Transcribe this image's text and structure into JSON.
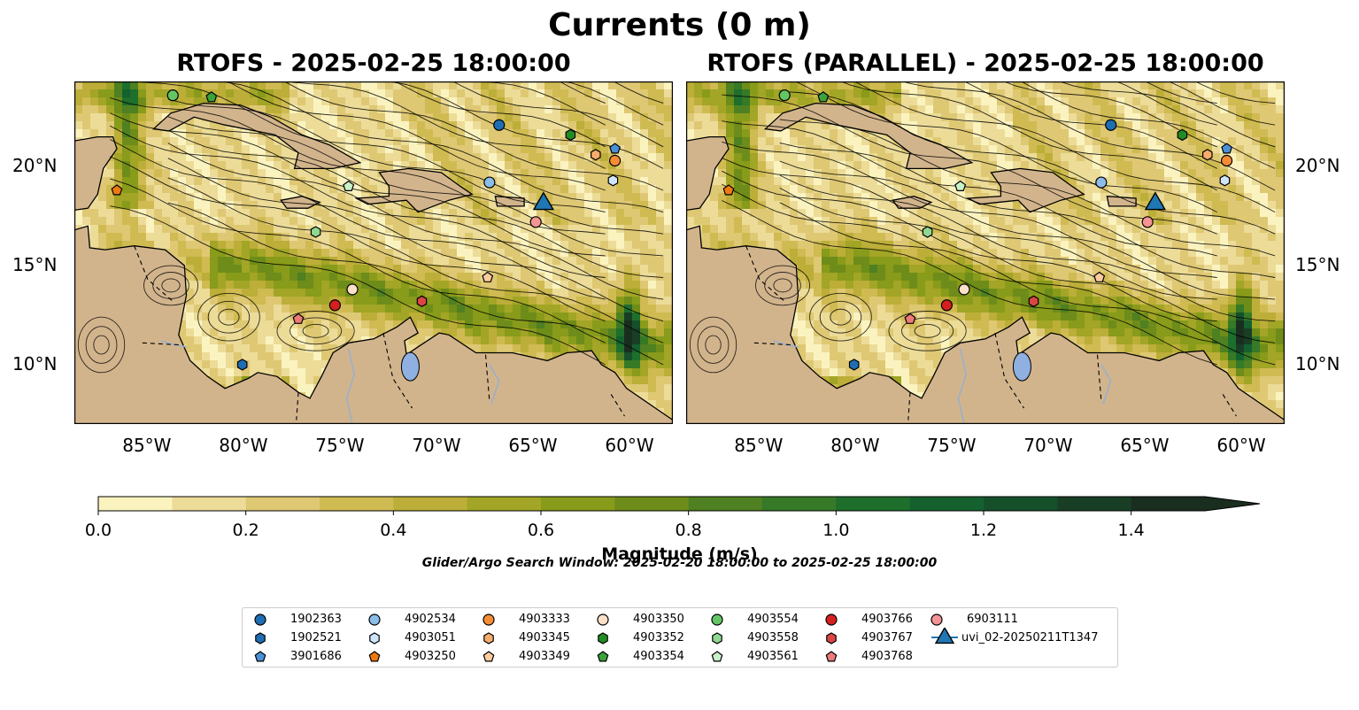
{
  "figure": {
    "title": "Currents (0 m)",
    "left_panel_title": "RTOFS - 2025-02-25 18:00:00",
    "right_panel_title": "RTOFS (PARALLEL) - 2025-02-25 18:00:00"
  },
  "map": {
    "lon_range": [
      -89,
      -58
    ],
    "lat_range": [
      7,
      24.3
    ],
    "x_ticks": [
      "85°W",
      "80°W",
      "75°W",
      "70°W",
      "65°W",
      "60°W"
    ],
    "y_ticks": [
      "20°N",
      "15°N",
      "10°N"
    ],
    "land_color": "#d2b48c",
    "water_feature_color": "#8fb0e0"
  },
  "colorbar": {
    "label": "Magnitude (m/s)",
    "ticks": [
      "0.0",
      "0.2",
      "0.4",
      "0.6",
      "0.8",
      "1.0",
      "1.2",
      "1.4"
    ],
    "min": 0.0,
    "max": 1.5,
    "extend": "max",
    "colors": [
      "#fbf3bf",
      "#ecdc98",
      "#dfc873",
      "#cfbb52",
      "#bcae38",
      "#a2a526",
      "#889b1a",
      "#6e8c19",
      "#4f8021",
      "#367926",
      "#1e6e2c",
      "#14612f",
      "#15502b",
      "#183e25",
      "#1a2e1f"
    ]
  },
  "search_window": "Glider/Argo Search Window: 2025-02-20 18:00:00 to 2025-02-25 18:00:00",
  "legend": {
    "items": [
      {
        "label": "1902363",
        "marker": "circle",
        "color": "#1f6db3"
      },
      {
        "label": "1902521",
        "marker": "hexagon",
        "color": "#1f6db3"
      },
      {
        "label": "3901686",
        "marker": "pentagon",
        "color": "#4a90d6"
      },
      {
        "label": "4902534",
        "marker": "circle",
        "color": "#8bbde8"
      },
      {
        "label": "4903051",
        "marker": "hexagon",
        "color": "#cfe6fa"
      },
      {
        "label": "4903250",
        "marker": "pentagon",
        "color": "#f07a10"
      },
      {
        "label": "4903333",
        "marker": "circle",
        "color": "#f68d35"
      },
      {
        "label": "4903345",
        "marker": "hexagon",
        "color": "#f8ac6c"
      },
      {
        "label": "4903349",
        "marker": "pentagon",
        "color": "#fccb9f"
      },
      {
        "label": "4903350",
        "marker": "circle",
        "color": "#fde0c8"
      },
      {
        "label": "4903352",
        "marker": "hexagon",
        "color": "#238b23"
      },
      {
        "label": "4903354",
        "marker": "pentagon",
        "color": "#3aa33a"
      },
      {
        "label": "4903554",
        "marker": "circle",
        "color": "#64c564"
      },
      {
        "label": "4903558",
        "marker": "hexagon",
        "color": "#90d890"
      },
      {
        "label": "4903561",
        "marker": "pentagon",
        "color": "#c8f2c8"
      },
      {
        "label": "4903766",
        "marker": "circle",
        "color": "#d62020"
      },
      {
        "label": "4903767",
        "marker": "hexagon",
        "color": "#dd4545"
      },
      {
        "label": "4903768",
        "marker": "pentagon",
        "color": "#ec7a7a"
      },
      {
        "label": "6903111",
        "marker": "circle",
        "color": "#f49494"
      },
      {
        "label": "uvi_02-20250211T1347",
        "marker": "triangle",
        "color": "#1f77b4"
      }
    ]
  },
  "floats": [
    {
      "id": "1902363",
      "lon": -67.0,
      "lat": 22.1
    },
    {
      "id": "1902521",
      "lon": -80.3,
      "lat": 10.0
    },
    {
      "id": "3901686",
      "lon": -61.0,
      "lat": 20.9
    },
    {
      "id": "4902534",
      "lon": -67.5,
      "lat": 19.2
    },
    {
      "id": "4903051",
      "lon": -61.1,
      "lat": 19.3
    },
    {
      "id": "4903250",
      "lon": -86.8,
      "lat": 18.8
    },
    {
      "id": "4903333",
      "lon": -61.0,
      "lat": 20.3
    },
    {
      "id": "4903345",
      "lon": -62.0,
      "lat": 20.6
    },
    {
      "id": "4903349",
      "lon": -67.6,
      "lat": 14.4
    },
    {
      "id": "4903350",
      "lon": -74.6,
      "lat": 13.8
    },
    {
      "id": "4903352",
      "lon": -63.3,
      "lat": 21.6
    },
    {
      "id": "4903354",
      "lon": -81.9,
      "lat": 23.5
    },
    {
      "id": "4903554",
      "lon": -83.9,
      "lat": 23.6
    },
    {
      "id": "4903558",
      "lon": -76.5,
      "lat": 16.7
    },
    {
      "id": "4903561",
      "lon": -74.8,
      "lat": 19.0
    },
    {
      "id": "4903766",
      "lon": -75.5,
      "lat": 13.0
    },
    {
      "id": "4903767",
      "lon": -71.0,
      "lat": 13.2
    },
    {
      "id": "4903768",
      "lon": -77.4,
      "lat": 12.3
    },
    {
      "id": "6903111",
      "lon": -65.1,
      "lat": 17.2
    }
  ],
  "glider": {
    "id": "uvi_02-20250211T1347",
    "lon": -64.7,
    "lat": 18.2
  }
}
